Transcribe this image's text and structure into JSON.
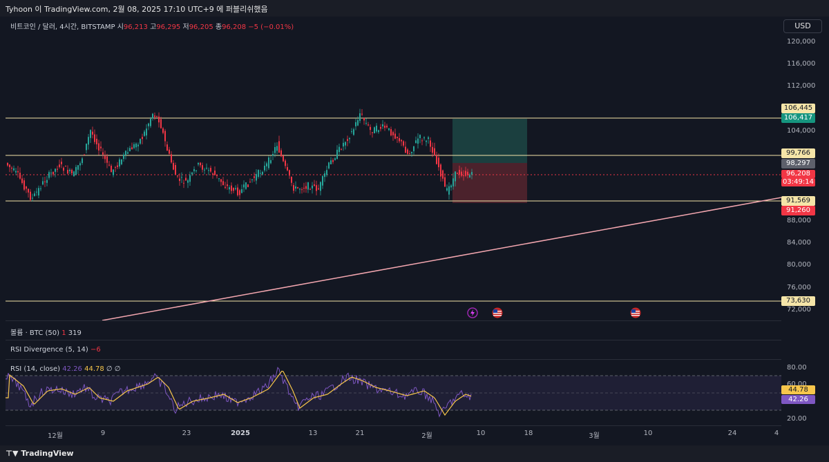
{
  "header": {
    "title": "Tyhoon 이 TradingView.com, 2월 08, 2025 17:10 UTC+9 에 퍼블리쉬했음"
  },
  "legend": {
    "symbol": "비트코인 / 달러, 4시간, BITSTAMP",
    "open_label": "시",
    "open": "96,213",
    "high_label": "고",
    "high": "96,295",
    "low_label": "저",
    "low": "96,205",
    "close_label": "종",
    "close": "96,208",
    "change": "−5 (−0.01%)"
  },
  "currency": "USD",
  "price_axis": [
    "120,000",
    "116,000",
    "112,000",
    "104,000",
    "88,000",
    "84,000",
    "80,000",
    "76,000",
    "72,000"
  ],
  "price_tags": {
    "level_106445": "106,445",
    "tp_106417": "106,417",
    "level_99766": "99,766",
    "entry_98297": "98,297",
    "last_price": "96,208",
    "countdown": "03:49:14",
    "level_91569": "91,569",
    "sl_91260": "91,260",
    "level_73630": "73,630"
  },
  "colors": {
    "up": "#26a69a",
    "down": "#f23645",
    "level": "#f5e5a8",
    "trend": "#f4a7b0",
    "rsi": "#7e57c2",
    "rsi_ma": "#f7c64b"
  },
  "volume_panel": {
    "label": "볼륨 · BTC (50)",
    "value1": "1",
    "value2": "319"
  },
  "div_panel": {
    "label": "RSI Divergence (5, 14)",
    "value": "−6"
  },
  "rsi_panel": {
    "label": "RSI (14, close)",
    "rsi": "42.26",
    "ma": "44.78",
    "extra": "∅ ∅",
    "axis": [
      "80.00",
      "60.00",
      "20.00"
    ],
    "tag_ma": "44.78",
    "tag_rsi": "42.26"
  },
  "time_axis": [
    "12월",
    "9",
    "23",
    "2025",
    "13",
    "21",
    "2월",
    "10",
    "18",
    "3월",
    "10",
    "24",
    "4"
  ],
  "footer": {
    "brand": "TradingView"
  },
  "events": [
    {
      "icon": "lightning-icon"
    },
    {
      "icon": "us-flag-icon"
    },
    {
      "icon": "us-flag-icon"
    }
  ]
}
